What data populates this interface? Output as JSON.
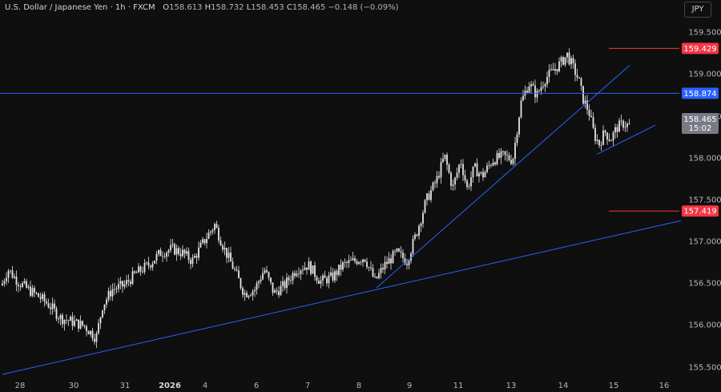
{
  "header": {
    "symbol": "U.S. Dollar / Japanese Yen · 1h · FXCM",
    "open_label": "O",
    "open": "158.613",
    "high_label": "H",
    "high": "158.732",
    "low_label": "L",
    "low": "158.453",
    "close_label": "C",
    "close": "158.465",
    "change": "−0.148 (−0.09%)"
  },
  "currency": "JPY",
  "colors": {
    "background": "#0f0f0f",
    "candle": "#e6e6e6",
    "trendline": "#2962ff",
    "resistance_line": "#f23645",
    "horizontal_level": "#2962ff",
    "axis_text": "#b2b5be",
    "current_price_box": "#787b86"
  },
  "chart_data": {
    "type": "candlestick",
    "title": "U.S. Dollar / Japanese Yen · 1h · FXCM",
    "y_axis": {
      "ticks": [
        "155.500",
        "156.000",
        "156.500",
        "157.000",
        "157.500",
        "158.000",
        "158.500",
        "159.000",
        "159.500"
      ],
      "range": [
        155.35,
        159.75
      ]
    },
    "x_axis": {
      "ticks": [
        "28",
        "30",
        "31",
        "2026",
        "4",
        "6",
        "7",
        "8",
        "9",
        "11",
        "13",
        "14",
        "15",
        "16"
      ],
      "bold_ticks": [
        "2026"
      ]
    },
    "price_path": [
      [
        0,
        156.45
      ],
      [
        10,
        156.7
      ],
      [
        22,
        156.55
      ],
      [
        35,
        156.45
      ],
      [
        50,
        156.35
      ],
      [
        62,
        156.25
      ],
      [
        75,
        156.1
      ],
      [
        90,
        156.05
      ],
      [
        105,
        156.0
      ],
      [
        120,
        155.85
      ],
      [
        128,
        156.25
      ],
      [
        140,
        156.45
      ],
      [
        155,
        156.5
      ],
      [
        170,
        156.65
      ],
      [
        185,
        156.75
      ],
      [
        200,
        156.9
      ],
      [
        215,
        156.95
      ],
      [
        228,
        156.9
      ],
      [
        240,
        156.8
      ],
      [
        255,
        157.05
      ],
      [
        268,
        157.25
      ],
      [
        280,
        156.95
      ],
      [
        292,
        156.7
      ],
      [
        305,
        156.4
      ],
      [
        318,
        156.45
      ],
      [
        330,
        156.7
      ],
      [
        342,
        156.4
      ],
      [
        355,
        156.5
      ],
      [
        370,
        156.7
      ],
      [
        385,
        156.75
      ],
      [
        400,
        156.55
      ],
      [
        415,
        156.6
      ],
      [
        428,
        156.75
      ],
      [
        442,
        156.8
      ],
      [
        455,
        156.85
      ],
      [
        468,
        156.55
      ],
      [
        480,
        156.75
      ],
      [
        495,
        156.9
      ],
      [
        508,
        156.8
      ],
      [
        520,
        157.15
      ],
      [
        532,
        157.55
      ],
      [
        545,
        157.8
      ],
      [
        555,
        158.1
      ],
      [
        565,
        157.7
      ],
      [
        575,
        158.05
      ],
      [
        583,
        157.7
      ],
      [
        592,
        157.95
      ],
      [
        602,
        157.85
      ],
      [
        615,
        158.05
      ],
      [
        628,
        158.1
      ],
      [
        640,
        158.05
      ],
      [
        650,
        158.75
      ],
      [
        660,
        159.0
      ],
      [
        670,
        158.85
      ],
      [
        680,
        159.05
      ],
      [
        690,
        159.15
      ],
      [
        700,
        159.25
      ],
      [
        708,
        159.35
      ],
      [
        715,
        159.2
      ],
      [
        722,
        159.05
      ],
      [
        728,
        158.8
      ],
      [
        735,
        158.65
      ],
      [
        742,
        158.35
      ],
      [
        748,
        158.25
      ],
      [
        755,
        158.4
      ],
      [
        762,
        158.3
      ],
      [
        770,
        158.45
      ],
      [
        778,
        158.5
      ],
      [
        786,
        158.47
      ]
    ],
    "horizontal_levels": [
      {
        "price": 159.429,
        "label": "159.429",
        "style": "resistance",
        "x_start": 760
      },
      {
        "price": 158.874,
        "label": "158.874",
        "style": "level",
        "x_start": 0
      },
      {
        "price": 157.419,
        "label": "157.419",
        "style": "resistance",
        "x_start": 760
      }
    ],
    "trendlines": [
      {
        "from": [
          3,
          155.4
        ],
        "to": [
          850,
          157.3
        ]
      },
      {
        "from": [
          470,
          156.47
        ],
        "to": [
          786,
          159.22
        ]
      },
      {
        "from": [
          745,
          158.12
        ],
        "to": [
          818,
          158.48
        ]
      }
    ],
    "current_price": {
      "label": "158.465",
      "countdown": "15:02"
    }
  }
}
